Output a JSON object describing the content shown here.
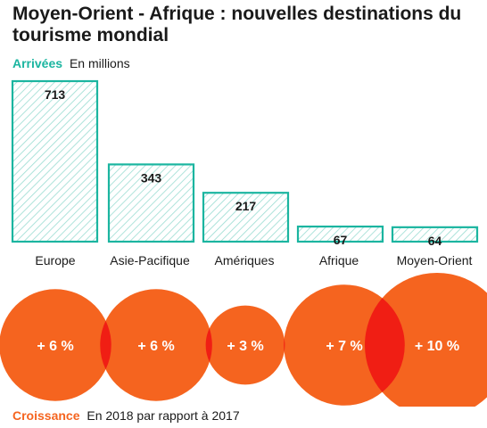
{
  "title": "Moyen-Orient - Afrique : nouvelles destinations du tourisme mondial",
  "subtitle": {
    "accent": "Arrivées",
    "rest": "En millions"
  },
  "footer": {
    "accent": "Croissance",
    "rest": "En 2018 par rapport à 2017"
  },
  "colors": {
    "teal": "#1bb5a0",
    "orange": "#f5641f",
    "overlap": "#f01e14"
  },
  "chart_data": [
    {
      "type": "bar",
      "categories": [
        "Europe",
        "Asie-Pacifique",
        "Amériques",
        "Afrique",
        "Moyen-Orient"
      ],
      "values": [
        713,
        343,
        217,
        67,
        64
      ],
      "title": "Arrivées",
      "ylabel": "En millions",
      "ylim": [
        0,
        713
      ],
      "grid": false
    },
    {
      "type": "bubble",
      "categories": [
        "Europe",
        "Asie-Pacifique",
        "Amériques",
        "Afrique",
        "Moyen-Orient"
      ],
      "values": [
        6,
        6,
        3,
        7,
        10
      ],
      "labels": [
        "+ 6 %",
        "+ 6 %",
        "+ 3 %",
        "+ 7 %",
        "+ 10 %"
      ],
      "title": "Croissance",
      "ylabel": "En 2018 par rapport à 2017"
    }
  ]
}
